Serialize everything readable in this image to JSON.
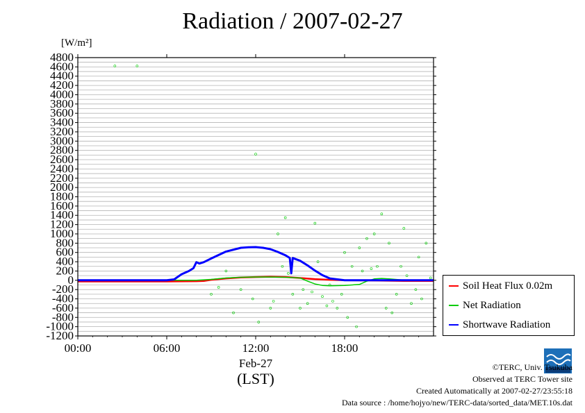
{
  "title": "Radiation / 2007-02-27",
  "unit_label": "[W/m²]",
  "chart_data": {
    "type": "line",
    "title": "Radiation / 2007-02-27",
    "ylabel": "[W/m²]",
    "xlabel": "(LST)",
    "date_label": "Feb-27",
    "xlim": [
      0,
      24
    ],
    "ylim": [
      -1200,
      4800
    ],
    "x_ticks": [
      0,
      6,
      12,
      18
    ],
    "x_tick_labels": [
      "00:00",
      "06:00",
      "12:00",
      "18:00"
    ],
    "y_ticks": [
      -1200,
      -1000,
      -800,
      -600,
      -400,
      -200,
      0,
      200,
      400,
      600,
      800,
      1000,
      1200,
      1400,
      1600,
      1800,
      2000,
      2200,
      2400,
      2600,
      2800,
      3000,
      3200,
      3400,
      3600,
      3800,
      4000,
      4200,
      4400,
      4600,
      4800
    ],
    "grid": true,
    "legend_position": "right",
    "series": [
      {
        "name": "Soil Heat Flux 0.02m",
        "color": "#ff0000",
        "x": [
          0,
          3,
          6,
          8,
          8.5,
          9,
          10,
          11,
          12,
          13,
          14,
          15,
          16,
          17,
          18,
          20,
          22,
          24
        ],
        "y": [
          -25,
          -25,
          -25,
          -20,
          -15,
          10,
          40,
          60,
          70,
          75,
          70,
          50,
          25,
          10,
          0,
          -5,
          -15,
          -15
        ]
      },
      {
        "name": "Net Radiation",
        "color": "#00cc00",
        "x": [
          0,
          8,
          9,
          10,
          11,
          12,
          13,
          14,
          15,
          15.5,
          16,
          16.5,
          17,
          18,
          19,
          19.5,
          20,
          20.5,
          21,
          22,
          24
        ],
        "y": [
          0,
          0,
          20,
          50,
          65,
          70,
          70,
          65,
          50,
          -20,
          -80,
          -110,
          -120,
          -110,
          -90,
          -20,
          30,
          40,
          30,
          5,
          0
        ]
      },
      {
        "name": "Shortwave Radiation",
        "color": "#0000ff",
        "x": [
          0,
          6,
          6.5,
          7,
          7.5,
          7.8,
          8,
          8.2,
          8.5,
          9,
          10,
          11,
          11.5,
          12,
          12.5,
          13,
          13.5,
          14,
          14.3,
          14.4,
          14.5,
          15,
          15.5,
          16,
          16.5,
          17,
          18,
          19,
          24
        ],
        "y": [
          0,
          0,
          20,
          130,
          200,
          260,
          390,
          360,
          390,
          470,
          620,
          700,
          710,
          715,
          700,
          670,
          610,
          540,
          480,
          150,
          480,
          420,
          320,
          210,
          110,
          40,
          0,
          0,
          0
        ]
      }
    ],
    "scatter_points": {
      "name": "Net Radiation (10 s samples)",
      "color": "#00cc00",
      "x": [
        2.5,
        4,
        12,
        10.5,
        11,
        11.8,
        12.2,
        13,
        13.5,
        14,
        14.5,
        15,
        15.5,
        16,
        16.5,
        17,
        17.5,
        18,
        18.5,
        19,
        19.5,
        20,
        20.5,
        21,
        21.5,
        22,
        22.5,
        23,
        23.5,
        23.8,
        9.5,
        9,
        10,
        13.8,
        15.2,
        16.2,
        17.2,
        18.2,
        18.8,
        19.2,
        20.2,
        21.2,
        22.2,
        23.2,
        13.2,
        14.2,
        15.8,
        16.8,
        17.8,
        19.8,
        20.8,
        21.8,
        22.8
      ],
      "y": [
        4620,
        4620,
        2720,
        -700,
        -200,
        -400,
        -900,
        -600,
        1000,
        1350,
        -300,
        -600,
        -500,
        1230,
        -350,
        -100,
        -600,
        600,
        300,
        700,
        900,
        1000,
        1430,
        800,
        -300,
        1120,
        -500,
        500,
        800,
        50,
        -150,
        -300,
        200,
        300,
        -200,
        400,
        -450,
        -800,
        -1000,
        200,
        300,
        -700,
        100,
        -400,
        -450,
        150,
        -250,
        -550,
        -300,
        250,
        -600,
        300,
        -200
      ]
    }
  },
  "legend": {
    "items": [
      {
        "label": "Soil Heat Flux 0.02m",
        "color": "#ff0000"
      },
      {
        "label": "Net Radiation",
        "color": "#00cc00"
      },
      {
        "label": "Shortwave Radiation",
        "color": "#0000ff"
      }
    ]
  },
  "footer": {
    "copyright": "©TERC, Univ. Tsukuba",
    "observed": "Observed at TERC Tower site",
    "created": "Created Automatically at 2007-02-27/23:55:18",
    "source": "Data source : /home/hojyo/new/TERC-data/sorted_data/MET.10s.dat"
  },
  "logo_text": "TERC"
}
